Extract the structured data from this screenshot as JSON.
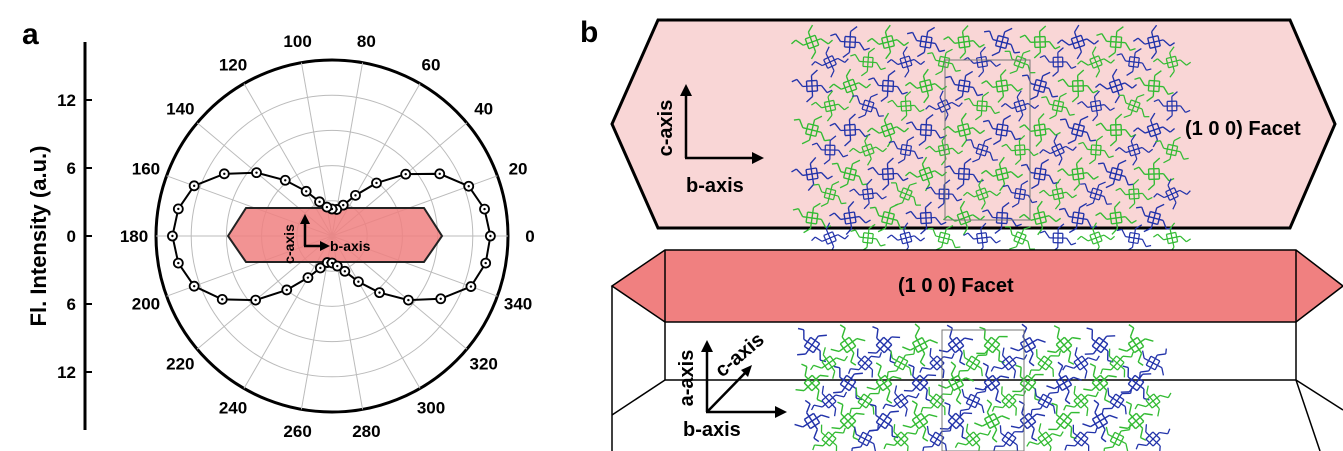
{
  "panel_a": {
    "label": "a",
    "ylabel": "Fl. Intensity (a.u.)",
    "radial_ticks_upper": [
      "12",
      "6"
    ],
    "radial_ticks_lower": [
      "6",
      "12"
    ],
    "zero_label": "0",
    "crystal_labels": {
      "c_axis": "c-axis",
      "b_axis": "b-axis"
    },
    "colors": {
      "crystal_fill": "#f08080",
      "line": "#000000",
      "grid": "#bbbbbb"
    }
  },
  "panel_b": {
    "label": "b",
    "top_view": {
      "facet_label": "(1 0 0) Facet",
      "c_axis": "c-axis",
      "b_axis": "b-axis"
    },
    "side_view": {
      "facet_label": "(1 0 0) Facet",
      "a_axis": "a-axis",
      "c_axis": "c-axis",
      "b_axis": "b-axis"
    },
    "colors": {
      "top_fill": "#f9d6d6",
      "facet_fill": "#f08080",
      "molecule_blue": "#2233aa",
      "molecule_green": "#33bb33"
    }
  },
  "chart_data": {
    "type": "polar",
    "theta_ticks": [
      "0",
      "20",
      "40",
      "60",
      "80",
      "100",
      "120",
      "140",
      "160",
      "180",
      "200",
      "220",
      "240",
      "260",
      "280",
      "300",
      "320",
      "340"
    ],
    "r_max": 15,
    "series": [
      {
        "theta": [
          0,
          10,
          20,
          30,
          40,
          50,
          60,
          70,
          80,
          90,
          100,
          110,
          120,
          130,
          140,
          150,
          160,
          170,
          180,
          190,
          200,
          210,
          220,
          230,
          240,
          250,
          260,
          270,
          280,
          290,
          300,
          310,
          320,
          330,
          340,
          350
        ],
        "r": [
          13.5,
          13.2,
          12.4,
          10.6,
          8.2,
          5.9,
          4.0,
          2.8,
          2.3,
          2.3,
          2.5,
          3.1,
          4.4,
          6.2,
          8.4,
          10.6,
          12.5,
          13.3,
          13.6,
          13.3,
          12.5,
          10.8,
          8.5,
          6.0,
          4.1,
          2.9,
          2.3,
          2.3,
          2.6,
          3.2,
          4.5,
          6.3,
          8.5,
          10.7,
          12.6,
          13.3
        ]
      }
    ]
  }
}
